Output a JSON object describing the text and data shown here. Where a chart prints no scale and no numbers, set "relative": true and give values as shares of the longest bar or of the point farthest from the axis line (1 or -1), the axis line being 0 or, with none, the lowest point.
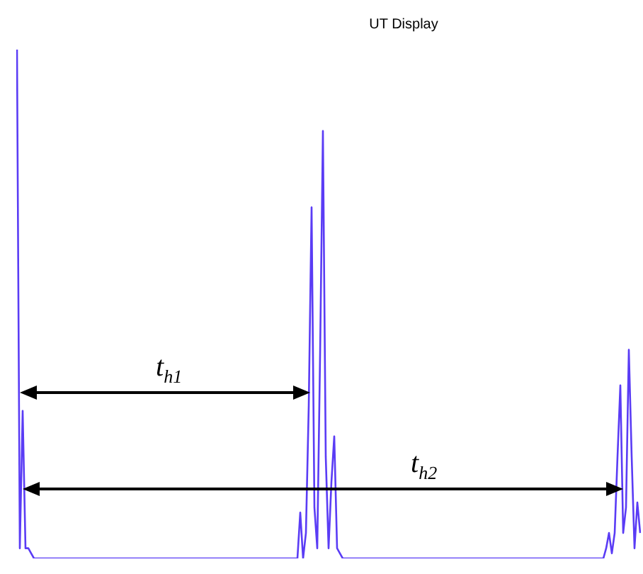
{
  "chart_data": {
    "type": "line",
    "title": "UT Display",
    "relative": true,
    "color": "#5a3cf5",
    "marker": "none",
    "line_style": "solid",
    "annotations": [
      "t$_{h1}$",
      "t$_{h2}$"
    ],
    "categories": [
      null,
      null,
      null,
      null,
      null,
      null,
      null,
      null,
      null,
      null,
      null,
      null,
      null,
      null,
      null,
      null,
      null,
      null,
      null,
      null,
      null,
      null,
      null,
      null,
      null,
      null,
      null,
      null,
      null,
      null,
      null,
      null,
      null,
      null,
      null,
      null,
      null,
      null,
      null,
      null,
      null,
      null,
      null,
      null,
      null,
      null,
      null,
      null,
      null,
      null,
      null,
      null,
      null,
      null,
      null,
      null,
      null,
      null,
      null,
      null,
      null,
      null,
      null,
      null,
      null,
      null,
      null,
      null,
      null,
      null,
      null,
      null,
      null,
      null,
      null,
      null,
      null,
      null,
      null,
      null,
      null,
      null,
      null,
      null,
      null,
      null,
      null,
      null,
      null,
      null,
      null,
      null,
      null,
      null,
      null,
      null,
      null,
      null,
      null,
      null,
      null,
      null,
      null,
      null,
      null,
      null,
      null,
      null,
      null,
      null,
      null,
      null,
      null,
      null,
      null,
      null,
      null,
      null,
      null,
      null,
      null,
      null,
      null,
      null,
      null,
      null,
      null,
      null,
      null,
      null,
      null,
      null,
      null,
      null,
      null,
      null,
      null,
      null,
      null,
      null,
      null,
      null,
      null,
      null,
      null,
      null,
      null,
      null,
      null,
      null,
      null,
      null,
      null,
      null,
      null,
      null,
      null,
      null,
      null,
      null,
      null,
      null,
      null,
      null,
      null,
      null,
      null,
      null,
      null,
      null,
      null,
      null,
      null,
      null,
      null,
      null,
      null,
      null,
      null,
      null,
      null,
      null,
      null,
      null,
      null,
      null,
      null,
      null,
      null,
      null,
      null,
      null,
      null,
      null,
      null,
      null,
      null,
      null,
      null,
      null,
      null,
      null,
      null,
      null,
      null,
      null,
      null,
      null,
      null,
      null,
      null,
      null,
      null,
      null,
      null,
      null,
      null,
      null,
      null,
      null,
      null
    ],
    "values": [
      1,
      0.02,
      0.29,
      0.02,
      0.02,
      0.01,
      0,
      0,
      0,
      0,
      0,
      0,
      0,
      0,
      0,
      0,
      0,
      0,
      0,
      0,
      0,
      0,
      0,
      0,
      0,
      0,
      0,
      0,
      0,
      0,
      0,
      0,
      0,
      0,
      0,
      0,
      0,
      0,
      0,
      0,
      0,
      0,
      0,
      0,
      0,
      0,
      0,
      0,
      0,
      0,
      0,
      0,
      0,
      0,
      0,
      0,
      0,
      0,
      0,
      0,
      0,
      0,
      0,
      0,
      0,
      0,
      0,
      0,
      0,
      0,
      0,
      0,
      0,
      0,
      0,
      0,
      0,
      0,
      0,
      0,
      0,
      0,
      0,
      0,
      0,
      0,
      0,
      0,
      0,
      0,
      0,
      0,
      0,
      0,
      0,
      0,
      0,
      0,
      0,
      0,
      0.09,
      0,
      0.05,
      0.3,
      0.69,
      0.1,
      0.02,
      0.4,
      0.84,
      0.2,
      0.02,
      0.15,
      0.24,
      0.02,
      0.01,
      0,
      0,
      0,
      0,
      0,
      0,
      0,
      0,
      0,
      0,
      0,
      0,
      0,
      0,
      0,
      0,
      0,
      0,
      0,
      0,
      0,
      0,
      0,
      0,
      0,
      0,
      0,
      0,
      0,
      0,
      0,
      0,
      0,
      0,
      0,
      0,
      0,
      0,
      0,
      0,
      0,
      0,
      0,
      0,
      0,
      0,
      0,
      0,
      0,
      0,
      0,
      0,
      0,
      0,
      0,
      0,
      0,
      0,
      0,
      0,
      0,
      0,
      0,
      0,
      0,
      0,
      0,
      0,
      0,
      0,
      0,
      0,
      0,
      0,
      0,
      0,
      0,
      0,
      0,
      0,
      0,
      0,
      0,
      0,
      0,
      0,
      0,
      0,
      0,
      0,
      0,
      0,
      0,
      0.02,
      0.05,
      0.01,
      0.05,
      0.2,
      0.34,
      0.05,
      0.1,
      0.41,
      0.2,
      0.02,
      0.11,
      0.05
    ]
  }
}
